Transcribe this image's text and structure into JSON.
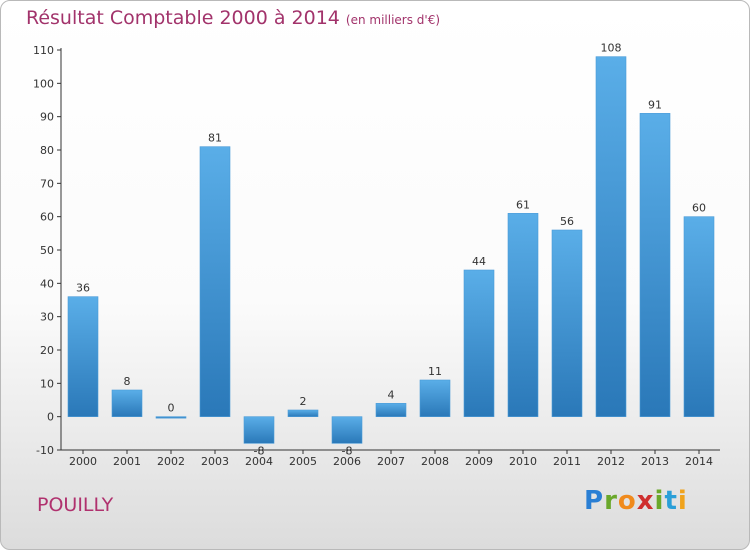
{
  "title": "Résultat Comptable 2000 à 2014",
  "subtitle": "(en milliers d'€)",
  "commune": "POUILLY",
  "logo": {
    "letters": [
      "P",
      "r",
      "o",
      "x",
      "i",
      "t",
      "i"
    ],
    "colors": [
      "#2a7fd4",
      "#6aa82b",
      "#f08a1c",
      "#cf2f2f",
      "#6aa82b",
      "#2a9fd8",
      "#f0a31c"
    ]
  },
  "colors": {
    "bar_top": "#5aaee8",
    "bar_bottom": "#2a78b8",
    "title": "#a2336b"
  },
  "chart_data": {
    "type": "bar",
    "categories": [
      "2000",
      "2001",
      "2002",
      "2003",
      "2004",
      "2005",
      "2006",
      "2007",
      "2008",
      "2009",
      "2010",
      "2011",
      "2012",
      "2013",
      "2014"
    ],
    "values": [
      36,
      8,
      0,
      81,
      -8,
      2,
      -8,
      4,
      11,
      44,
      61,
      56,
      108,
      91,
      60
    ],
    "ylim": [
      -10,
      110
    ],
    "yticks": [
      -10,
      0,
      10,
      20,
      30,
      40,
      50,
      60,
      70,
      80,
      90,
      100,
      110
    ],
    "grid": false,
    "title": "Résultat Comptable 2000 à 2014",
    "xlabel": "",
    "ylabel": ""
  }
}
